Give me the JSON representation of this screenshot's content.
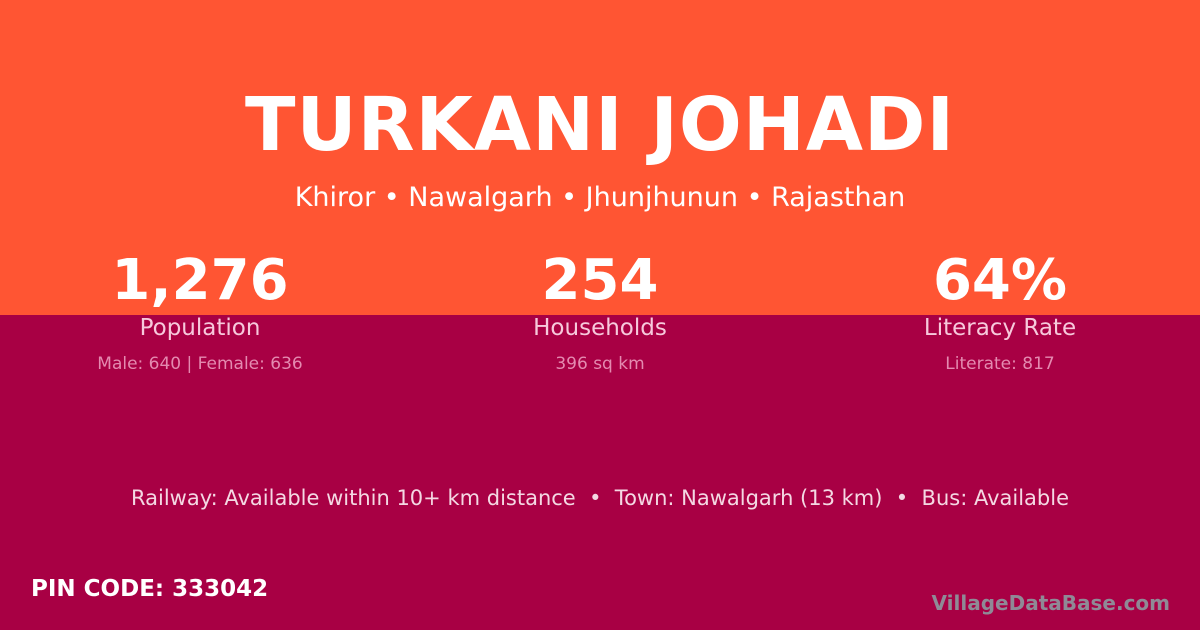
{
  "title": "TURKANI JOHADI",
  "location": "Khiror • Nawalgarh • Jhunjhunun • Rajasthan",
  "stats": [
    {
      "value": "1,276",
      "label": "Population",
      "detail": "Male: 640 | Female: 636"
    },
    {
      "value": "254",
      "label": "Households",
      "detail": "396 sq km"
    },
    {
      "value": "64%",
      "label": "Literacy Rate",
      "detail": "Literate: 817"
    }
  ],
  "connectivity": "Railway: Available within 10+ km distance  •  Town: Nawalgarh (13 km)  •  Bus: Available",
  "pin_code": "PIN CODE: 333042",
  "brand": "VillageDataBase.com",
  "colors": {
    "header": "#ff5533",
    "body": "#a80044"
  }
}
